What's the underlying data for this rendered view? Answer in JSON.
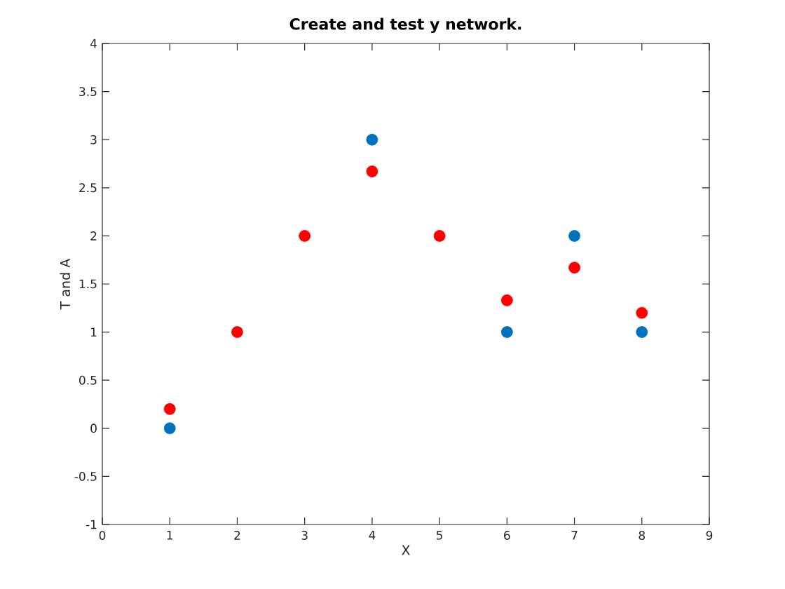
{
  "chart_data": {
    "type": "scatter",
    "title": "Create and test y network.",
    "xlabel": "X",
    "ylabel": "T and A",
    "x": [
      1,
      2,
      3,
      4,
      5,
      6,
      7,
      8
    ],
    "series": [
      {
        "color": "#0072bd",
        "values": [
          0,
          null,
          null,
          3,
          null,
          1,
          2,
          1
        ]
      },
      {
        "color": "#ff0000",
        "values": [
          0.2,
          1,
          2,
          2.67,
          2,
          1.33,
          1.67,
          1.2
        ]
      }
    ],
    "xlim": [
      0,
      9
    ],
    "xticks": [
      0,
      1,
      2,
      3,
      4,
      5,
      6,
      7,
      8,
      9
    ],
    "ylim": [
      -1,
      4
    ],
    "yticks": [
      -1,
      -0.5,
      0,
      0.5,
      1,
      1.5,
      2,
      2.5,
      3,
      3.5,
      4
    ],
    "marker": "circle"
  }
}
